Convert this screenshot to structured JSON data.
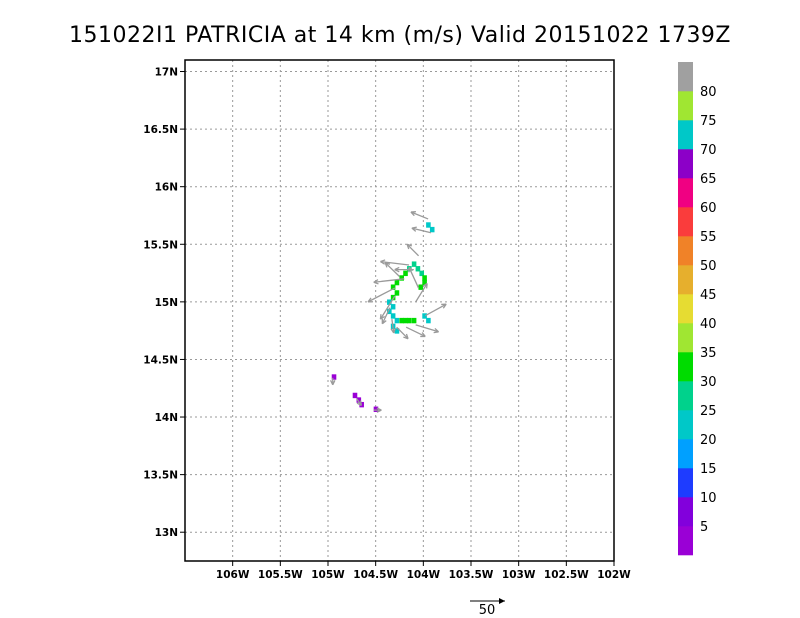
{
  "chart_data": {
    "type": "heatmap",
    "title": "151022I1 PATRICIA at 14 km (m/s) Valid 20151022 1739Z",
    "xlim": [
      -106.5,
      -102
    ],
    "ylim": [
      12.75,
      17.1
    ],
    "xticks": [
      {
        "v": -106,
        "label": "106W"
      },
      {
        "v": -105.5,
        "label": "105.5W"
      },
      {
        "v": -105,
        "label": "105W"
      },
      {
        "v": -104.5,
        "label": "104.5W"
      },
      {
        "v": -104,
        "label": "104W"
      },
      {
        "v": -103.5,
        "label": "103.5W"
      },
      {
        "v": -103,
        "label": "103W"
      },
      {
        "v": -102.5,
        "label": "102.5W"
      },
      {
        "v": -102,
        "label": "102W"
      }
    ],
    "yticks": [
      {
        "v": 13,
        "label": "13N"
      },
      {
        "v": 13.5,
        "label": "13.5N"
      },
      {
        "v": 14,
        "label": "14N"
      },
      {
        "v": 14.5,
        "label": "14.5N"
      },
      {
        "v": 15,
        "label": "15N"
      },
      {
        "v": 15.5,
        "label": "15.5N"
      },
      {
        "v": 16,
        "label": "16N"
      },
      {
        "v": 16.5,
        "label": "16.5N"
      },
      {
        "v": 17,
        "label": "17N"
      }
    ],
    "grid": true,
    "colorbar": {
      "labels": [
        "5",
        "10",
        "15",
        "20",
        "25",
        "30",
        "35",
        "40",
        "45",
        "50",
        "55",
        "60",
        "65",
        "70",
        "75",
        "80"
      ],
      "colors": [
        "#9a00d6",
        "#8200dc",
        "#1e3cff",
        "#00a0ff",
        "#00c8c8",
        "#00d28c",
        "#00dc00",
        "#a0e632",
        "#e6dc32",
        "#e6af2d",
        "#f08228",
        "#fa3c3c",
        "#f00082",
        "#8c00c8",
        "#00c8c8",
        "#a0e632",
        "#a0a0a0"
      ]
    },
    "cell_size_deg": 0.0417,
    "cells": [
      {
        "lon": -103.95,
        "lat": 15.67,
        "v": 22
      },
      {
        "lon": -103.91,
        "lat": 15.63,
        "v": 22
      },
      {
        "lon": -104.1,
        "lat": 15.33,
        "v": 28
      },
      {
        "lon": -104.15,
        "lat": 15.29,
        "v": 28
      },
      {
        "lon": -104.19,
        "lat": 15.25,
        "v": 30
      },
      {
        "lon": -104.23,
        "lat": 15.21,
        "v": 30
      },
      {
        "lon": -104.28,
        "lat": 15.17,
        "v": 30
      },
      {
        "lon": -104.32,
        "lat": 15.13,
        "v": 30
      },
      {
        "lon": -104.28,
        "lat": 15.08,
        "v": 30
      },
      {
        "lon": -104.32,
        "lat": 15.04,
        "v": 30
      },
      {
        "lon": -104.36,
        "lat": 15.0,
        "v": 22
      },
      {
        "lon": -104.32,
        "lat": 14.96,
        "v": 22
      },
      {
        "lon": -104.36,
        "lat": 14.92,
        "v": 22
      },
      {
        "lon": -104.32,
        "lat": 14.88,
        "v": 22
      },
      {
        "lon": -104.28,
        "lat": 14.84,
        "v": 22
      },
      {
        "lon": -104.32,
        "lat": 14.79,
        "v": 22
      },
      {
        "lon": -104.28,
        "lat": 14.75,
        "v": 22
      },
      {
        "lon": -104.23,
        "lat": 14.84,
        "v": 30
      },
      {
        "lon": -104.19,
        "lat": 14.84,
        "v": 30
      },
      {
        "lon": -104.15,
        "lat": 14.84,
        "v": 30
      },
      {
        "lon": -104.1,
        "lat": 14.84,
        "v": 30
      },
      {
        "lon": -103.99,
        "lat": 14.88,
        "v": 22
      },
      {
        "lon": -103.95,
        "lat": 14.84,
        "v": 22
      },
      {
        "lon": -104.06,
        "lat": 15.29,
        "v": 28
      },
      {
        "lon": -104.02,
        "lat": 15.25,
        "v": 28
      },
      {
        "lon": -103.99,
        "lat": 15.21,
        "v": 30
      },
      {
        "lon": -103.99,
        "lat": 15.17,
        "v": 30
      },
      {
        "lon": -104.03,
        "lat": 15.13,
        "v": 30
      },
      {
        "lon": -104.94,
        "lat": 14.35,
        "v": 4
      },
      {
        "lon": -104.72,
        "lat": 14.19,
        "v": 4
      },
      {
        "lon": -104.68,
        "lat": 14.15,
        "v": 4
      },
      {
        "lon": -104.65,
        "lat": 14.11,
        "v": 4
      },
      {
        "lon": -104.5,
        "lat": 14.07,
        "v": 4
      }
    ],
    "vectors": [
      {
        "lon": -103.95,
        "lat": 15.72,
        "u": -0.18,
        "v": 0.06
      },
      {
        "lon": -103.92,
        "lat": 15.6,
        "u": -0.2,
        "v": 0.04
      },
      {
        "lon": -104.05,
        "lat": 15.4,
        "u": -0.12,
        "v": 0.1
      },
      {
        "lon": -104.15,
        "lat": 15.32,
        "u": -0.3,
        "v": 0.03
      },
      {
        "lon": -104.1,
        "lat": 15.28,
        "u": -0.2,
        "v": 0.0
      },
      {
        "lon": -104.2,
        "lat": 15.2,
        "u": -0.32,
        "v": -0.03
      },
      {
        "lon": -104.3,
        "lat": 15.12,
        "u": -0.28,
        "v": -0.12
      },
      {
        "lon": -104.25,
        "lat": 15.22,
        "u": -0.15,
        "v": 0.12
      },
      {
        "lon": -104.05,
        "lat": 15.12,
        "u": -0.1,
        "v": 0.18
      },
      {
        "lon": -104.3,
        "lat": 15.05,
        "u": -0.15,
        "v": -0.2
      },
      {
        "lon": -104.35,
        "lat": 14.95,
        "u": -0.08,
        "v": -0.14
      },
      {
        "lon": -104.33,
        "lat": 14.85,
        "u": 0.02,
        "v": -0.12
      },
      {
        "lon": -104.28,
        "lat": 14.78,
        "u": 0.12,
        "v": -0.1
      },
      {
        "lon": -104.18,
        "lat": 14.78,
        "u": 0.2,
        "v": -0.08
      },
      {
        "lon": -104.08,
        "lat": 14.8,
        "u": 0.24,
        "v": -0.06
      },
      {
        "lon": -103.98,
        "lat": 14.88,
        "u": 0.22,
        "v": 0.1
      },
      {
        "lon": -104.08,
        "lat": 15.0,
        "u": 0.12,
        "v": 0.16
      },
      {
        "lon": -104.95,
        "lat": 14.34,
        "u": 0.0,
        "v": -0.06
      },
      {
        "lon": -104.7,
        "lat": 14.16,
        "u": 0.05,
        "v": -0.06
      },
      {
        "lon": -104.52,
        "lat": 14.06,
        "u": 0.08,
        "v": 0.0
      }
    ],
    "reference_vector": {
      "label": "50"
    }
  }
}
